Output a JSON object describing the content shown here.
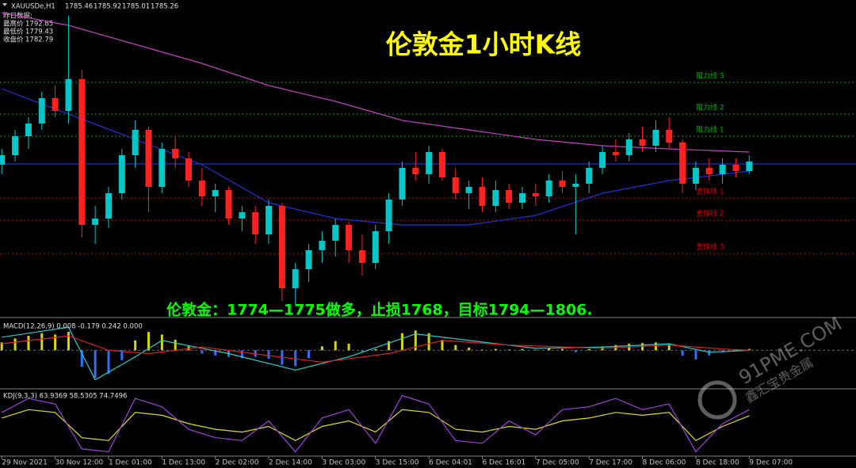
{
  "header": {
    "symbol": "XAUUSDe,H1",
    "ohlc": [
      1785.46,
      1785.92,
      1785.01,
      1785.26
    ]
  },
  "info": {
    "heading": "昨日数据:",
    "rows": [
      {
        "label": "最高价",
        "value": 1792.85
      },
      {
        "label": "最低价",
        "value": 1779.43
      },
      {
        "label": "收盘价",
        "value": 1782.79
      }
    ]
  },
  "watermark": {
    "site": "91PME.COM",
    "brand": "鑫汇宝贵金属"
  },
  "chart_data": [
    {
      "type": "candlestick",
      "title": "伦敦金1小时K线",
      "annotation": "伦敦金：1774—1775做多，止损1768，目标1794—1806.",
      "x": [
        0,
        3,
        6,
        9,
        12,
        15,
        18,
        21,
        24,
        27,
        30,
        33,
        36,
        39,
        42,
        45,
        48,
        51,
        54,
        57,
        60,
        63,
        66,
        69,
        72,
        75,
        78,
        81,
        84,
        87,
        90,
        93,
        96,
        99,
        102,
        105,
        108,
        111,
        114,
        117,
        120,
        123,
        126,
        129,
        132,
        135,
        138,
        141,
        144,
        147,
        150,
        153,
        156,
        159,
        162,
        165,
        168
      ],
      "open": [
        1785,
        1788,
        1794,
        1798,
        1806,
        1802,
        1812,
        1766,
        1768,
        1776,
        1788,
        1796,
        1778,
        1790,
        1787,
        1780,
        1775,
        1777,
        1768,
        1770,
        1763,
        1772,
        1746,
        1752,
        1758,
        1761,
        1766,
        1758,
        1754,
        1764,
        1774,
        1784,
        1782,
        1789,
        1781,
        1776,
        1778,
        1772,
        1777,
        1773,
        1776,
        1775,
        1780,
        1778,
        1779,
        1784,
        1789,
        1788,
        1793,
        1791,
        1796,
        1792,
        1779,
        1784,
        1782,
        1785,
        1783
      ],
      "high": [
        1790,
        1796,
        1800,
        1808,
        1810,
        1832,
        1815,
        1772,
        1778,
        1790,
        1799,
        1797,
        1792,
        1794,
        1789,
        1784,
        1779,
        1778,
        1772,
        1772,
        1774,
        1773,
        1754,
        1760,
        1764,
        1768,
        1767,
        1763,
        1766,
        1776,
        1786,
        1789,
        1791,
        1790,
        1784,
        1780,
        1781,
        1780,
        1779,
        1778,
        1779,
        1782,
        1783,
        1782,
        1786,
        1791,
        1793,
        1795,
        1797,
        1799,
        1800,
        1793,
        1786,
        1787,
        1787,
        1787,
        1788
      ],
      "low": [
        1782,
        1786,
        1790,
        1796,
        1800,
        1798,
        1762,
        1760,
        1765,
        1774,
        1784,
        1770,
        1776,
        1784,
        1778,
        1772,
        1770,
        1766,
        1764,
        1760,
        1760,
        1742,
        1741,
        1748,
        1754,
        1756,
        1754,
        1750,
        1752,
        1760,
        1772,
        1780,
        1779,
        1780,
        1774,
        1771,
        1770,
        1770,
        1771,
        1771,
        1772,
        1773,
        1776,
        1763,
        1776,
        1782,
        1786,
        1786,
        1789,
        1789,
        1790,
        1776,
        1777,
        1780,
        1779,
        1781,
        1782
      ],
      "close": [
        1788,
        1794,
        1798,
        1806,
        1802,
        1812,
        1766,
        1768,
        1776,
        1788,
        1796,
        1778,
        1790,
        1787,
        1780,
        1775,
        1777,
        1768,
        1770,
        1763,
        1772,
        1746,
        1752,
        1758,
        1761,
        1766,
        1758,
        1754,
        1764,
        1774,
        1784,
        1782,
        1789,
        1781,
        1776,
        1778,
        1772,
        1777,
        1773,
        1776,
        1775,
        1780,
        1778,
        1779,
        1784,
        1789,
        1788,
        1793,
        1791,
        1796,
        1792,
        1779,
        1784,
        1782,
        1785,
        1783,
        1786
      ],
      "up_color": "#00c8c8",
      "down_color": "#ff2020",
      "xlim": [
        -0.4,
        192
      ],
      "ylim": [
        1737,
        1834.5
      ],
      "xticks": [
        {
          "value": 0,
          "label": "29 Nov 2021"
        },
        {
          "value": 12,
          "label": "30 Nov 12:00"
        },
        {
          "value": 24,
          "label": "1 Dec 01:00"
        },
        {
          "value": 36,
          "label": "1 Dec 13:00"
        },
        {
          "value": 48,
          "label": "2 Dec 02:00"
        },
        {
          "value": 60,
          "label": "2 Dec 14:00"
        },
        {
          "value": 72,
          "label": "3 Dec 03:00"
        },
        {
          "value": 84,
          "label": "3 Dec 15:00"
        },
        {
          "value": 96,
          "label": "6 Dec 04:01"
        },
        {
          "value": 108,
          "label": "6 Dec 16:01"
        },
        {
          "value": 120,
          "label": "7 Dec 05:00"
        },
        {
          "value": 132,
          "label": "7 Dec 17:00"
        },
        {
          "value": 144,
          "label": "8 Dec 06:00"
        },
        {
          "value": 156,
          "label": "8 Dec 18:00"
        },
        {
          "value": 168,
          "label": "9 Dec 07:00"
        }
      ],
      "lines": [
        {
          "color": "#c040c0",
          "x": [
            0,
            15,
            30,
            45,
            60,
            75,
            90,
            105,
            120,
            135,
            150,
            168
          ],
          "values": [
            1833,
            1829,
            1823,
            1817,
            1810,
            1805,
            1799,
            1796,
            1793,
            1791,
            1790,
            1789
          ]
        },
        {
          "color": "#2030e0",
          "x": [
            0,
            15,
            30,
            45,
            60,
            75,
            90,
            105,
            120,
            135,
            150,
            168
          ],
          "values": [
            1809,
            1801,
            1793,
            1785,
            1773,
            1768,
            1766,
            1766,
            1769,
            1776,
            1780,
            1783
          ]
        }
      ],
      "levels": [
        {
          "label": "阻力线 3",
          "value": 1811,
          "color": "#00b000"
        },
        {
          "label": "阻力线 2",
          "value": 1801,
          "color": "#00b000"
        },
        {
          "label": "阻力线 1",
          "value": 1794,
          "color": "#00b000"
        },
        {
          "label": "支撑线 1",
          "value": 1774.5,
          "color": "#d00000"
        },
        {
          "label": "支撑线 2",
          "value": 1767.5,
          "color": "#d00000"
        },
        {
          "label": "支撑线 3",
          "value": 1757,
          "color": "#d00000"
        }
      ],
      "price_line_color": "#2040ff"
    },
    {
      "type": "macd",
      "label": "MACD(12,26,9) 0.008 -0.179 0.242 0.000",
      "x": [
        0,
        3,
        6,
        9,
        12,
        15,
        18,
        21,
        24,
        27,
        30,
        33,
        36,
        39,
        42,
        45,
        48,
        51,
        54,
        57,
        60,
        63,
        66,
        69,
        72,
        75,
        78,
        81,
        84,
        87,
        90,
        93,
        96,
        99,
        102,
        105,
        108,
        111,
        114,
        117,
        120,
        123,
        126,
        129,
        132,
        135,
        138,
        141,
        144,
        147,
        150,
        153,
        156,
        159,
        162,
        165,
        168
      ],
      "values": [
        1.2,
        1.8,
        2.2,
        2.6,
        2.4,
        2.8,
        -2.5,
        -4.2,
        -3.6,
        -1.5,
        1.5,
        2.8,
        2.4,
        1.6,
        0.6,
        -0.5,
        -0.8,
        -1.0,
        -1.2,
        -1.0,
        -1.3,
        -2.2,
        -2.4,
        -1.2,
        0.6,
        1.4,
        1.0,
        -0.2,
        0.2,
        1.4,
        2.6,
        3.0,
        2.6,
        1.6,
        0.8,
        0.4,
        0.1,
        0.2,
        0.1,
        0.2,
        0.1,
        0.3,
        0.2,
        -0.3,
        0.2,
        0.6,
        0.8,
        1.0,
        1.1,
        1.2,
        1.0,
        -0.8,
        -1.4,
        -0.8,
        -0.3,
        0.1,
        0.2
      ],
      "pos_color": "#d8d800",
      "neg_color": "#3070ff",
      "ylim": [
        -5.5,
        4.5
      ],
      "lines": [
        {
          "color": "#20d0d0",
          "x": [
            0,
            15,
            21,
            30,
            36,
            51,
            66,
            78,
            93,
            105,
            120,
            135,
            150,
            159,
            168
          ],
          "values": [
            2,
            3.5,
            -4.5,
            -1,
            1.5,
            -0.5,
            -3,
            -1,
            2.5,
            1.5,
            0.3,
            0.5,
            1.0,
            -0.3,
            0
          ]
        },
        {
          "color": "#e02020",
          "x": [
            0,
            15,
            24,
            33,
            45,
            60,
            72,
            87,
            99,
            114,
            135,
            150,
            162,
            168
          ],
          "values": [
            1,
            2.2,
            0,
            -0.5,
            0.5,
            -0.8,
            -1.8,
            -0.5,
            1.5,
            0.8,
            0.3,
            0.8,
            0.2,
            0
          ]
        }
      ]
    },
    {
      "type": "oscillator",
      "label": "KDJ(9,3,3) 63.9369 58.5305 74.7496",
      "ylim": [
        -5,
        105
      ],
      "lines": [
        {
          "color": "#e0e000",
          "x": [
            0,
            6,
            12,
            18,
            24,
            30,
            36,
            42,
            48,
            54,
            60,
            66,
            72,
            78,
            84,
            90,
            96,
            102,
            108,
            114,
            120,
            126,
            132,
            138,
            144,
            150,
            156,
            162,
            168
          ],
          "values": [
            60,
            75,
            70,
            25,
            20,
            70,
            65,
            50,
            40,
            35,
            45,
            20,
            45,
            55,
            35,
            75,
            70,
            40,
            35,
            45,
            40,
            55,
            60,
            70,
            65,
            70,
            20,
            45,
            64
          ]
        },
        {
          "color": "#a040e0",
          "x": [
            0,
            6,
            12,
            18,
            24,
            30,
            36,
            42,
            48,
            54,
            60,
            66,
            72,
            78,
            84,
            90,
            96,
            102,
            108,
            114,
            120,
            126,
            132,
            138,
            144,
            150,
            156,
            162,
            168
          ],
          "values": [
            70,
            95,
            85,
            5,
            0,
            95,
            80,
            40,
            25,
            20,
            55,
            0,
            60,
            75,
            15,
            100,
            85,
            20,
            15,
            55,
            30,
            75,
            80,
            95,
            75,
            85,
            0,
            50,
            75
          ]
        }
      ]
    }
  ]
}
